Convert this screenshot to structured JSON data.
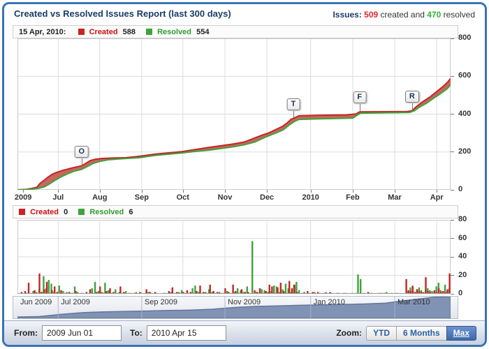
{
  "header": {
    "title": "Created vs Resolved Issues Report (last 300 days)",
    "summary_label": "Issues:",
    "created_count": "509",
    "created_text": "created and",
    "resolved_count": "470",
    "resolved_text": "resolved"
  },
  "main_legend": {
    "date": "15 Apr, 2010:",
    "created_label": "Created",
    "created_value": "588",
    "resolved_label": "Resolved",
    "resolved_value": "554"
  },
  "bar_legend": {
    "created_label": "Created",
    "created_value": "0",
    "resolved_label": "Resolved",
    "resolved_value": "6"
  },
  "controls": {
    "from_label": "From:",
    "from_value": "2009 Jun 01",
    "to_label": "To:",
    "to_value": "2010 Apr 15",
    "zoom_label": "Zoom:",
    "zoom_buttons": [
      {
        "label": "YTD",
        "selected": false
      },
      {
        "label": "6 Months",
        "selected": false
      },
      {
        "label": "Max",
        "selected": true
      }
    ]
  },
  "colors": {
    "frame_border": "#3a72b5",
    "created_line": "#c42525",
    "resolved_line": "#3ea33c",
    "band_fill": "#bc4d42",
    "grid": "#dcdcdc",
    "plot_border": "#c9c9c9",
    "nav_fill": "#8093b5",
    "nav_stroke": "#64769a",
    "created_text": "#cc1111",
    "resolved_text": "#2e9e2e"
  },
  "chart_data": [
    {
      "type": "line",
      "title": "Cumulative created vs resolved issues",
      "x_range": [
        "2009-06-01",
        "2010-04-15"
      ],
      "ylim": [
        0,
        800
      ],
      "yticks": [
        0,
        200,
        400,
        600,
        800
      ],
      "legend_position": "top",
      "grid": true,
      "xticks": [
        {
          "label": "2009",
          "f": 0.013
        },
        {
          "label": "Jul",
          "f": 0.094
        },
        {
          "label": "Aug",
          "f": 0.19
        },
        {
          "label": "Sep",
          "f": 0.287
        },
        {
          "label": "Oct",
          "f": 0.382
        },
        {
          "label": "Nov",
          "f": 0.479
        },
        {
          "label": "Dec",
          "f": 0.576
        },
        {
          "label": "2010",
          "f": 0.677
        },
        {
          "label": "Feb",
          "f": 0.774
        },
        {
          "label": "Mar",
          "f": 0.871
        },
        {
          "label": "Apr",
          "f": 0.968
        }
      ],
      "series": [
        {
          "name": "Created",
          "final_value": 588,
          "points": [
            [
              0,
              0
            ],
            [
              0.02,
              3
            ],
            [
              0.032,
              7
            ],
            [
              0.045,
              14
            ],
            [
              0.052,
              34
            ],
            [
              0.06,
              48
            ],
            [
              0.07,
              66
            ],
            [
              0.08,
              82
            ],
            [
              0.09,
              92
            ],
            [
              0.105,
              103
            ],
            [
              0.12,
              112
            ],
            [
              0.135,
              120
            ],
            [
              0.148,
              127
            ],
            [
              0.158,
              140
            ],
            [
              0.168,
              155
            ],
            [
              0.18,
              162
            ],
            [
              0.195,
              166
            ],
            [
              0.22,
              168
            ],
            [
              0.25,
              170
            ],
            [
              0.28,
              177
            ],
            [
              0.315,
              188
            ],
            [
              0.347,
              195
            ],
            [
              0.38,
              202
            ],
            [
              0.41,
              213
            ],
            [
              0.444,
              225
            ],
            [
              0.476,
              235
            ],
            [
              0.5,
              243
            ],
            [
              0.524,
              253
            ],
            [
              0.54,
              267
            ],
            [
              0.565,
              289
            ],
            [
              0.58,
              301
            ],
            [
              0.597,
              319
            ],
            [
              0.613,
              337
            ],
            [
              0.624,
              356
            ],
            [
              0.632,
              373
            ],
            [
              0.64,
              381
            ],
            [
              0.65,
              391
            ],
            [
              0.7,
              394
            ],
            [
              0.76,
              396
            ],
            [
              0.782,
              401
            ],
            [
              0.79,
              412
            ],
            [
              0.85,
              413
            ],
            [
              0.9,
              414
            ],
            [
              0.911,
              418
            ],
            [
              0.92,
              438
            ],
            [
              0.935,
              464
            ],
            [
              0.952,
              490
            ],
            [
              0.968,
              519
            ],
            [
              0.984,
              549
            ],
            [
              0.992,
              566
            ],
            [
              1,
              588
            ]
          ]
        },
        {
          "name": "Resolved",
          "final_value": 554,
          "points": [
            [
              0,
              0
            ],
            [
              0.03,
              3
            ],
            [
              0.05,
              9
            ],
            [
              0.062,
              16
            ],
            [
              0.073,
              30
            ],
            [
              0.085,
              48
            ],
            [
              0.1,
              68
            ],
            [
              0.115,
              84
            ],
            [
              0.13,
              98
            ],
            [
              0.148,
              108
            ],
            [
              0.162,
              124
            ],
            [
              0.175,
              140
            ],
            [
              0.19,
              150
            ],
            [
              0.21,
              159
            ],
            [
              0.24,
              164
            ],
            [
              0.282,
              170
            ],
            [
              0.315,
              181
            ],
            [
              0.347,
              188
            ],
            [
              0.38,
              195
            ],
            [
              0.411,
              203
            ],
            [
              0.444,
              210
            ],
            [
              0.476,
              220
            ],
            [
              0.5,
              228
            ],
            [
              0.524,
              238
            ],
            [
              0.548,
              253
            ],
            [
              0.573,
              279
            ],
            [
              0.597,
              301
            ],
            [
              0.613,
              316
            ],
            [
              0.629,
              345
            ],
            [
              0.64,
              362
            ],
            [
              0.65,
              372
            ],
            [
              0.7,
              375
            ],
            [
              0.774,
              379
            ],
            [
              0.792,
              405
            ],
            [
              0.85,
              407
            ],
            [
              0.905,
              409
            ],
            [
              0.916,
              417
            ],
            [
              0.927,
              435
            ],
            [
              0.944,
              457
            ],
            [
              0.96,
              483
            ],
            [
              0.976,
              507
            ],
            [
              0.992,
              534
            ],
            [
              1,
              554
            ]
          ]
        }
      ],
      "flags": [
        {
          "label": "O",
          "f": 0.148,
          "value": 127
        },
        {
          "label": "T",
          "f": 0.637,
          "value": 376
        },
        {
          "label": "F",
          "f": 0.79,
          "value": 412
        },
        {
          "label": "R",
          "f": 0.911,
          "value": 415
        }
      ]
    },
    {
      "type": "bar",
      "title": "Daily created vs resolved issues",
      "ylim": [
        0,
        80
      ],
      "yticks": [
        0,
        20,
        40,
        60,
        80
      ],
      "grid": true,
      "series": [
        {
          "name": "Created"
        },
        {
          "name": "Resolved"
        }
      ],
      "bars": [
        [
          0.012,
          2,
          0
        ],
        [
          0.02,
          3,
          1
        ],
        [
          0.028,
          12,
          1
        ],
        [
          0.034,
          0,
          3
        ],
        [
          0.042,
          4,
          2
        ],
        [
          0.048,
          0,
          5
        ],
        [
          0.053,
          22,
          2
        ],
        [
          0.058,
          2,
          19
        ],
        [
          0.064,
          5,
          6
        ],
        [
          0.07,
          13,
          15
        ],
        [
          0.076,
          1,
          11
        ],
        [
          0.082,
          4,
          2
        ],
        [
          0.088,
          8,
          1
        ],
        [
          0.094,
          2,
          9
        ],
        [
          0.103,
          4,
          3
        ],
        [
          0.112,
          1,
          2
        ],
        [
          0.122,
          2,
          1
        ],
        [
          0.13,
          1,
          8
        ],
        [
          0.137,
          3,
          2
        ],
        [
          0.15,
          1,
          1
        ],
        [
          0.162,
          2,
          0
        ],
        [
          0.17,
          5,
          6
        ],
        [
          0.177,
          1,
          13
        ],
        [
          0.185,
          2,
          3
        ],
        [
          0.193,
          8,
          2
        ],
        [
          0.2,
          1,
          12
        ],
        [
          0.208,
          3,
          4
        ],
        [
          0.216,
          6,
          1
        ],
        [
          0.224,
          2,
          5
        ],
        [
          0.233,
          1,
          2
        ],
        [
          0.24,
          8,
          1
        ],
        [
          0.248,
          2,
          3
        ],
        [
          0.26,
          1,
          1
        ],
        [
          0.272,
          1,
          2
        ],
        [
          0.285,
          2,
          1
        ],
        [
          0.3,
          5,
          2
        ],
        [
          0.308,
          2,
          1
        ],
        [
          0.32,
          2,
          1
        ],
        [
          0.34,
          1,
          1
        ],
        [
          0.352,
          3,
          2
        ],
        [
          0.36,
          7,
          1
        ],
        [
          0.37,
          2,
          2
        ],
        [
          0.377,
          1,
          4
        ],
        [
          0.385,
          2,
          1
        ],
        [
          0.394,
          4,
          1
        ],
        [
          0.402,
          2,
          6
        ],
        [
          0.408,
          1,
          9
        ],
        [
          0.416,
          3,
          2
        ],
        [
          0.424,
          9,
          1
        ],
        [
          0.432,
          2,
          2
        ],
        [
          0.44,
          1,
          5
        ],
        [
          0.447,
          10,
          2
        ],
        [
          0.455,
          3,
          1
        ],
        [
          0.464,
          2,
          2
        ],
        [
          0.474,
          1,
          1
        ],
        [
          0.482,
          6,
          3
        ],
        [
          0.49,
          2,
          1
        ],
        [
          0.5,
          10,
          2
        ],
        [
          0.506,
          3,
          6
        ],
        [
          0.513,
          1,
          4
        ],
        [
          0.52,
          5,
          2
        ],
        [
          0.528,
          2,
          8
        ],
        [
          0.535,
          2,
          1
        ],
        [
          0.54,
          0,
          57
        ],
        [
          0.55,
          4,
          2
        ],
        [
          0.556,
          2,
          1
        ],
        [
          0.562,
          6,
          5
        ],
        [
          0.568,
          1,
          4
        ],
        [
          0.576,
          3,
          2
        ],
        [
          0.584,
          10,
          3
        ],
        [
          0.59,
          8,
          9
        ],
        [
          0.596,
          1,
          8
        ],
        [
          0.603,
          7,
          2
        ],
        [
          0.61,
          12,
          5
        ],
        [
          0.617,
          3,
          11
        ],
        [
          0.623,
          1,
          6
        ],
        [
          0.63,
          14,
          2
        ],
        [
          0.636,
          6,
          10
        ],
        [
          0.642,
          10,
          13
        ],
        [
          0.648,
          2,
          4
        ],
        [
          0.66,
          1,
          2
        ],
        [
          0.672,
          3,
          1
        ],
        [
          0.684,
          2,
          2
        ],
        [
          0.696,
          2,
          1
        ],
        [
          0.71,
          1,
          2
        ],
        [
          0.724,
          2,
          1
        ],
        [
          0.74,
          1,
          1
        ],
        [
          0.756,
          1,
          1
        ],
        [
          0.77,
          0,
          1
        ],
        [
          0.784,
          1,
          21
        ],
        [
          0.79,
          0,
          16
        ],
        [
          0.8,
          1,
          1
        ],
        [
          0.812,
          2,
          1
        ],
        [
          0.82,
          1,
          0
        ],
        [
          0.83,
          0,
          1
        ],
        [
          0.84,
          1,
          1
        ],
        [
          0.85,
          1,
          2
        ],
        [
          0.862,
          0,
          1
        ],
        [
          0.876,
          1,
          1
        ],
        [
          0.9,
          16,
          3
        ],
        [
          0.905,
          4,
          7
        ],
        [
          0.91,
          3,
          9
        ],
        [
          0.915,
          8,
          2
        ],
        [
          0.92,
          2,
          5
        ],
        [
          0.925,
          5,
          7
        ],
        [
          0.93,
          3,
          4
        ],
        [
          0.935,
          2,
          2
        ],
        [
          0.94,
          1,
          3
        ],
        [
          0.945,
          18,
          6
        ],
        [
          0.95,
          3,
          4
        ],
        [
          0.955,
          2,
          3
        ],
        [
          0.96,
          1,
          2
        ],
        [
          0.965,
          4,
          8
        ],
        [
          0.97,
          2,
          12
        ],
        [
          0.975,
          6,
          4
        ],
        [
          0.98,
          2,
          2
        ],
        [
          0.985,
          3,
          10
        ],
        [
          0.99,
          2,
          3
        ],
        [
          0.995,
          5,
          6
        ],
        [
          1,
          22,
          2
        ]
      ]
    },
    {
      "type": "area",
      "title": "Navigator timeline",
      "points": [
        [
          0,
          0.06
        ],
        [
          0.05,
          0.08
        ],
        [
          0.1,
          0.18
        ],
        [
          0.15,
          0.26
        ],
        [
          0.2,
          0.3
        ],
        [
          0.25,
          0.32
        ],
        [
          0.3,
          0.34
        ],
        [
          0.35,
          0.36
        ],
        [
          0.4,
          0.38
        ],
        [
          0.45,
          0.42
        ],
        [
          0.5,
          0.5
        ],
        [
          0.55,
          0.55
        ],
        [
          0.6,
          0.57
        ],
        [
          0.65,
          0.6
        ],
        [
          0.7,
          0.62
        ],
        [
          0.75,
          0.64
        ],
        [
          0.8,
          0.66
        ],
        [
          0.85,
          0.7
        ],
        [
          0.88,
          0.78
        ],
        [
          0.92,
          0.88
        ],
        [
          0.96,
          0.97
        ],
        [
          1,
          1
        ]
      ],
      "labels": [
        {
          "label": "Jun 2009",
          "f": 0.0,
          "divider": false
        },
        {
          "label": "Jul 2009",
          "f": 0.094,
          "divider": true
        },
        {
          "label": "Sep 2009",
          "f": 0.287,
          "divider": true
        },
        {
          "label": "Nov 2009",
          "f": 0.479,
          "divider": true
        },
        {
          "label": "Jan 2010",
          "f": 0.677,
          "divider": true
        },
        {
          "label": "Mar 2010",
          "f": 0.871,
          "divider": true
        }
      ]
    }
  ]
}
